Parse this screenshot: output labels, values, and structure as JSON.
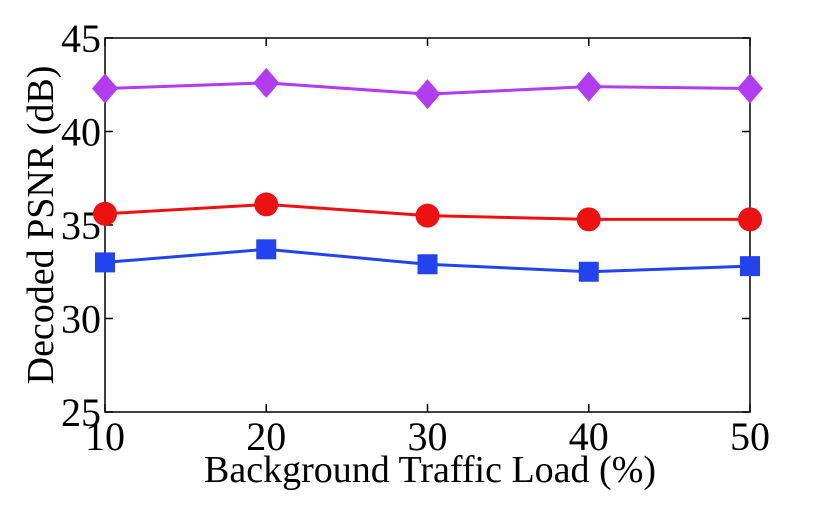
{
  "chart_data": {
    "type": "line",
    "title": "",
    "xlabel": "Background Traffic Load (%)",
    "ylabel": "Decoded PSNR (dB)",
    "x": [
      10,
      20,
      30,
      40,
      50
    ],
    "xlim": [
      10,
      50
    ],
    "ylim": [
      25,
      45
    ],
    "xticks": [
      "10",
      "20",
      "30",
      "40",
      "50"
    ],
    "yticks": [
      "25",
      "30",
      "35",
      "40",
      "45"
    ],
    "grid": false,
    "series": [
      {
        "name": "diamond series",
        "color": "#b23cf0",
        "marker": "diamond",
        "values": [
          42.3,
          42.6,
          42.0,
          42.4,
          42.3
        ]
      },
      {
        "name": "circle series",
        "color": "#ee1111",
        "marker": "circle",
        "values": [
          35.6,
          36.1,
          35.5,
          35.3,
          35.3
        ]
      },
      {
        "name": "square series",
        "color": "#2244ee",
        "marker": "square",
        "values": [
          33.0,
          33.7,
          32.9,
          32.5,
          32.8
        ]
      }
    ]
  }
}
